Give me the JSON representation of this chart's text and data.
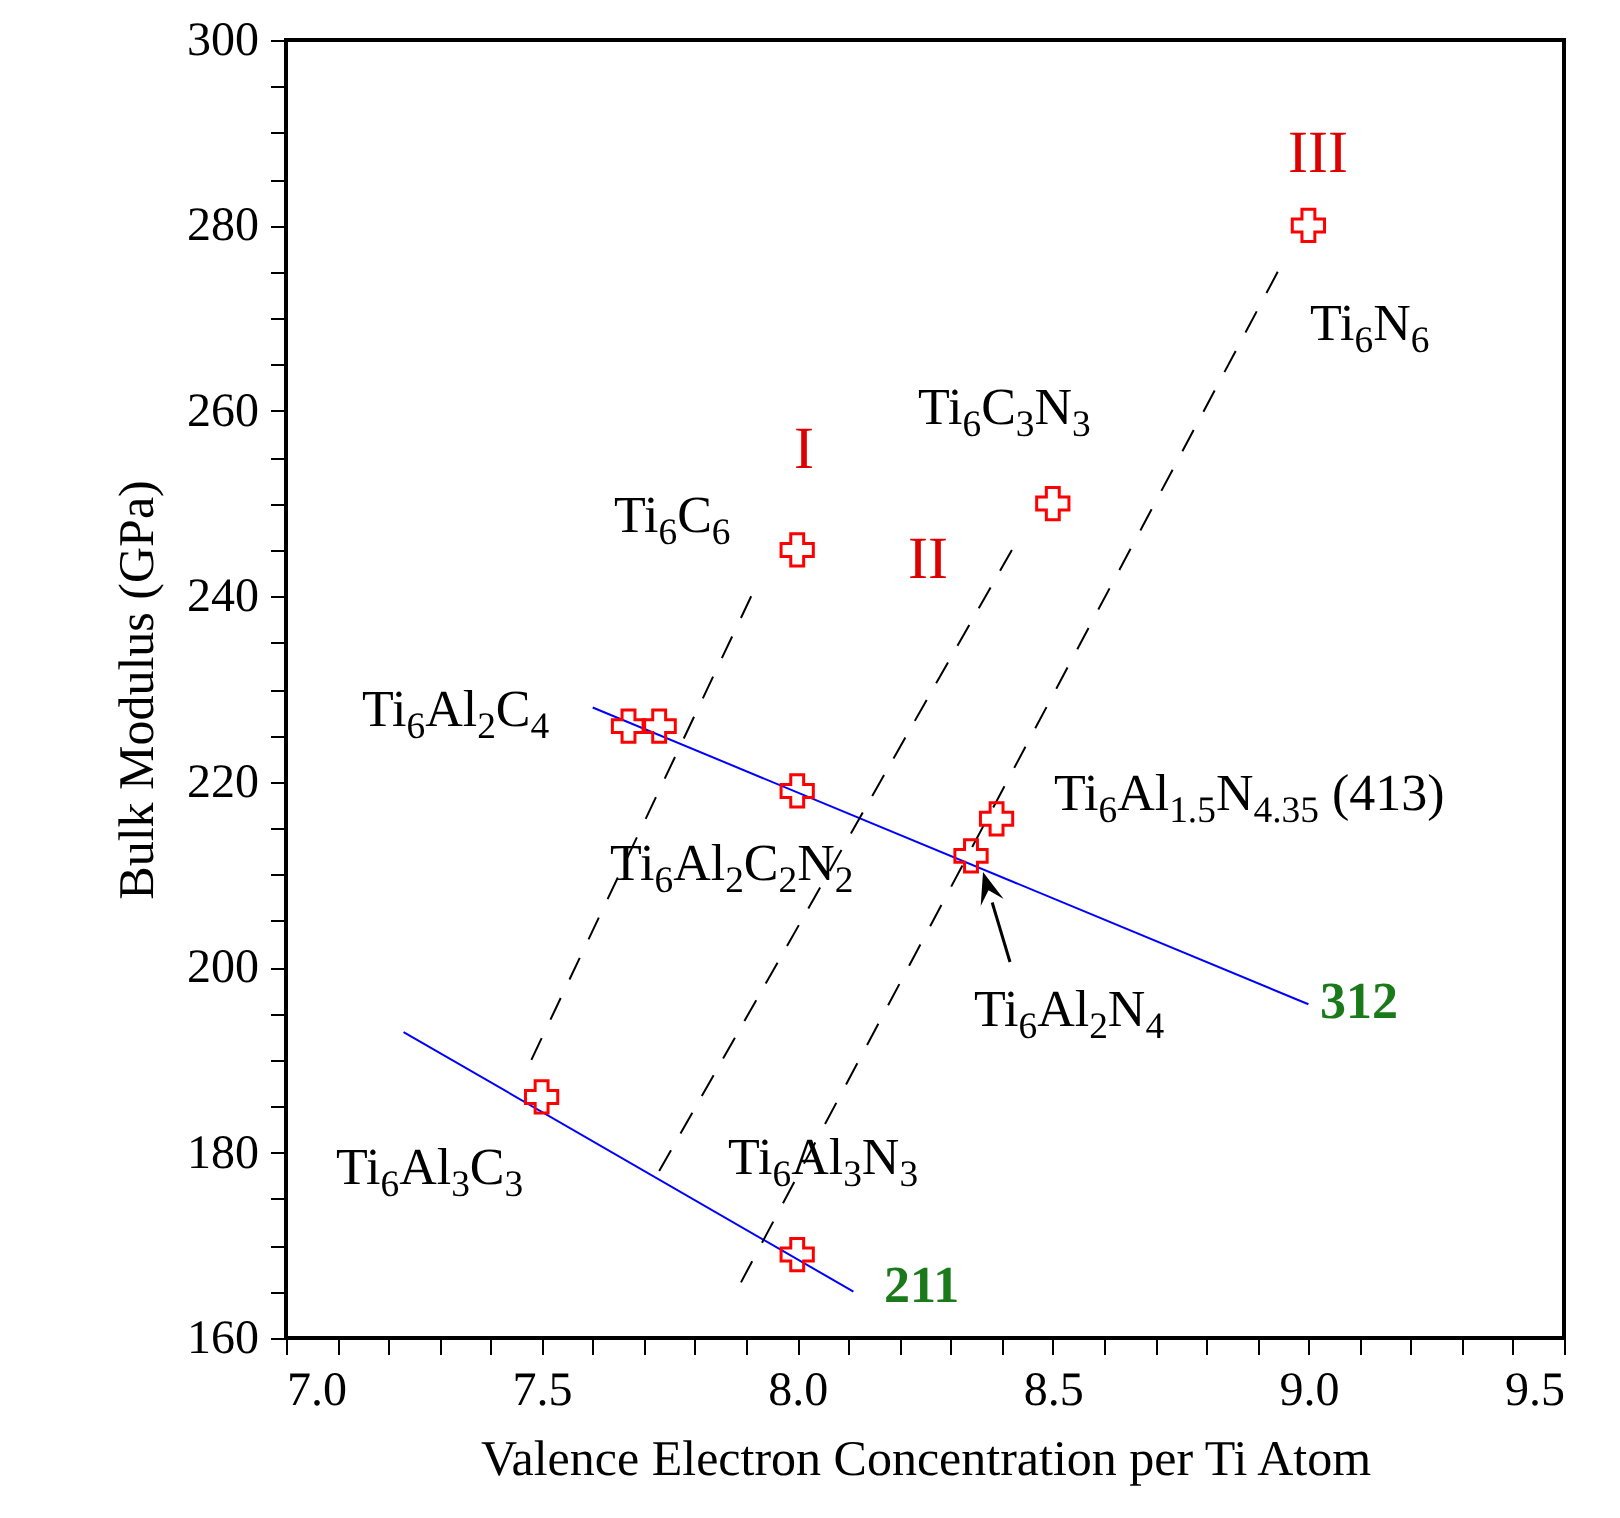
{
  "chart_data": {
    "type": "scatter",
    "xlabel": "Valence Electron Concentration per Ti Atom",
    "ylabel": "Bulk Modulus (GPa)",
    "xlim": [
      7.0,
      9.5
    ],
    "ylim": [
      160,
      300
    ],
    "xticks": [
      {
        "value": 7.0,
        "label": "7.0"
      },
      {
        "value": 7.1,
        "label": null
      },
      {
        "value": 7.2,
        "label": null
      },
      {
        "value": 7.3,
        "label": null
      },
      {
        "value": 7.4,
        "label": null
      },
      {
        "value": 7.5,
        "label": "7.5"
      },
      {
        "value": 7.6,
        "label": null
      },
      {
        "value": 7.7,
        "label": null
      },
      {
        "value": 7.8,
        "label": null
      },
      {
        "value": 7.9,
        "label": null
      },
      {
        "value": 8.0,
        "label": "8.0"
      },
      {
        "value": 8.1,
        "label": null
      },
      {
        "value": 8.2,
        "label": null
      },
      {
        "value": 8.3,
        "label": null
      },
      {
        "value": 8.4,
        "label": null
      },
      {
        "value": 8.5,
        "label": "8.5"
      },
      {
        "value": 8.6,
        "label": null
      },
      {
        "value": 8.7,
        "label": null
      },
      {
        "value": 8.8,
        "label": null
      },
      {
        "value": 8.9,
        "label": null
      },
      {
        "value": 9.0,
        "label": "9.0"
      },
      {
        "value": 9.1,
        "label": null
      },
      {
        "value": 9.2,
        "label": null
      },
      {
        "value": 9.3,
        "label": null
      },
      {
        "value": 9.4,
        "label": null
      },
      {
        "value": 9.5,
        "label": "9.5"
      }
    ],
    "yticks": [
      160,
      {
        "value": 165,
        "label": null
      },
      {
        "value": 170,
        "label": null
      },
      {
        "value": 175,
        "label": null
      },
      180,
      {
        "value": 185,
        "label": null
      },
      {
        "value": 190,
        "label": null
      },
      {
        "value": 195,
        "label": null
      },
      200,
      {
        "value": 205,
        "label": null
      },
      {
        "value": 210,
        "label": null
      },
      {
        "value": 215,
        "label": null
      },
      220,
      {
        "value": 225,
        "label": null
      },
      {
        "value": 230,
        "label": null
      },
      {
        "value": 235,
        "label": null
      },
      240,
      {
        "value": 245,
        "label": null
      },
      {
        "value": 250,
        "label": null
      },
      {
        "value": 255,
        "label": null
      },
      260,
      {
        "value": 265,
        "label": null
      },
      {
        "value": 270,
        "label": null
      },
      {
        "value": 275,
        "label": null
      },
      280,
      {
        "value": 285,
        "label": null
      },
      {
        "value": 290,
        "label": null
      },
      {
        "value": 295,
        "label": null
      },
      300
    ],
    "grid": false,
    "series": [
      {
        "color": "#ff0000",
        "marker": "cross",
        "x": [
          8.0,
          8.5,
          9.0,
          7.67,
          7.73,
          8.0,
          8.34,
          8.39,
          7.5,
          8.0
        ],
        "values": [
          245,
          250,
          280,
          226,
          226,
          219,
          212,
          216,
          186,
          169
        ]
      },
      {
        "type": "line",
        "color": "#0000ff",
        "x": [
          7.6,
          9.0
        ],
        "values": [
          228,
          196
        ]
      },
      {
        "type": "line",
        "color": "#0000ff",
        "x": [
          7.23,
          8.11
        ],
        "values": [
          193,
          165
        ]
      },
      {
        "type": "line",
        "color": "#000000",
        "line_style": "dashed",
        "x": [
          7.48,
          7.91
        ],
        "values": [
          190,
          240
        ]
      },
      {
        "type": "line",
        "color": "#000000",
        "line_style": "dashed",
        "x": [
          7.73,
          8.42
        ],
        "values": [
          178,
          245
        ]
      },
      {
        "type": "line",
        "color": "#000000",
        "line_style": "dashed",
        "x": [
          7.89,
          8.94
        ],
        "values": [
          166,
          275
        ]
      }
    ],
    "annotations": [
      "I",
      "II",
      "III",
      "Ti$_{6}$C$_{6}$",
      "Ti$_{6}$C$_{3}$N$_{3}$",
      "Ti$_{6}$N$_{6}$",
      "Ti$_{6}$Al$_{2}$C$_{4}$",
      "Ti$_{6}$Al$_{2}$C$_{2}$N$_{2}$",
      "Ti$_{6}$Al$_{1.5}$N$_{4.35}$ (413)",
      "Ti$_{6}$Al$_{2}$N$_{4}$",
      "Ti$_{6}$Al$_{3}$C$_{3}$",
      "Ti$_{6}$Al$_{3}$N$_{3}$",
      "312",
      "211"
    ]
  }
}
